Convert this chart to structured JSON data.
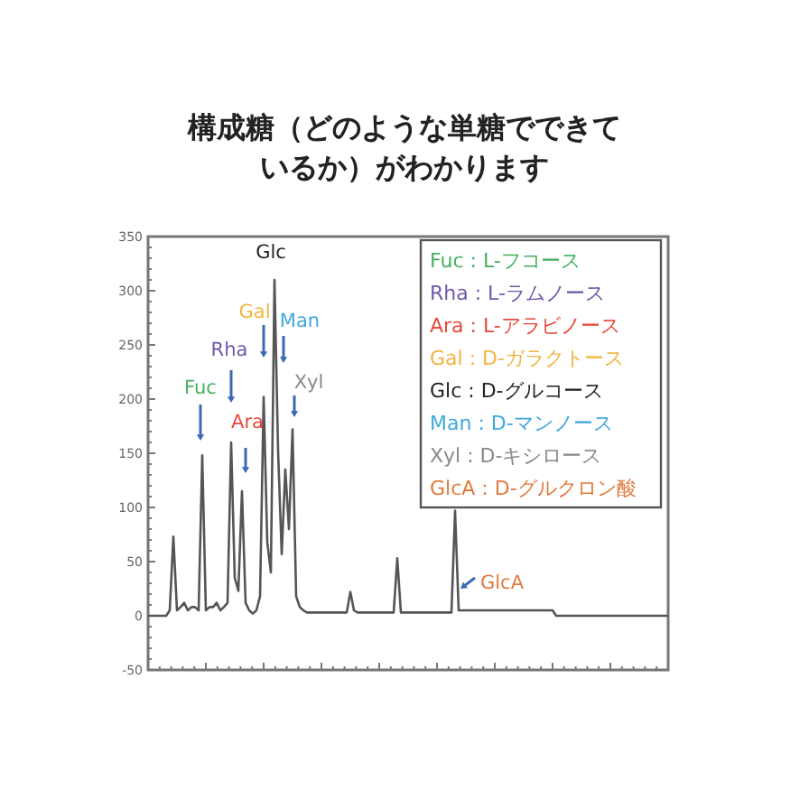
{
  "chart_data": {
    "type": "line",
    "title": "構成糖（どのような単糖でできているか）がわかります",
    "ylim": [
      -50,
      350
    ],
    "yticks": [
      -50,
      0,
      50,
      100,
      150,
      200,
      250,
      300,
      350
    ],
    "tick_labels": "y",
    "categories": [
      null,
      null,
      null,
      null,
      null,
      null,
      null,
      null,
      null,
      null,
      null,
      null,
      null,
      null,
      null,
      null,
      null,
      null,
      null,
      null,
      null,
      null,
      null,
      null,
      null,
      null,
      null,
      null,
      null,
      null,
      null,
      null,
      null,
      null,
      null,
      null,
      null,
      null,
      null,
      null,
      null,
      null,
      null,
      null,
      null,
      null,
      null,
      null,
      null,
      null,
      null,
      null,
      null,
      null,
      null,
      null,
      null,
      null,
      null,
      null,
      null,
      null,
      null,
      null,
      null,
      null,
      null,
      null,
      null,
      null,
      null,
      null,
      null,
      null,
      null,
      null,
      null,
      null,
      null,
      null,
      null,
      null,
      null,
      null,
      null,
      null,
      null,
      null,
      null,
      null,
      null,
      null,
      null,
      null,
      null,
      null,
      null,
      null,
      null,
      null,
      null,
      null,
      null,
      null,
      null,
      null,
      null,
      null,
      null,
      null,
      null,
      null,
      null,
      null,
      null,
      null,
      null,
      null,
      null,
      null,
      null,
      null,
      null,
      null,
      null,
      null,
      null,
      null,
      null,
      null,
      null,
      null,
      null,
      null,
      null,
      null,
      null,
      null,
      null,
      null,
      null,
      null,
      null,
      null,
      null
    ],
    "series": [
      {
        "color": "#555555",
        "values": [
          0,
          0,
          0,
          0,
          0,
          0,
          5,
          73,
          5,
          8,
          12,
          5,
          8,
          8,
          5,
          148,
          5,
          8,
          8,
          12,
          5,
          8,
          12,
          160,
          35,
          23,
          115,
          12,
          5,
          2,
          5,
          18,
          202,
          68,
          40,
          310,
          152,
          57,
          135,
          80,
          172,
          18,
          8,
          5,
          3,
          3,
          3,
          3,
          3,
          3,
          3,
          3,
          3,
          3,
          3,
          3,
          22,
          5,
          3,
          3,
          3,
          3,
          3,
          3,
          3,
          3,
          3,
          3,
          3,
          53,
          3,
          3,
          3,
          3,
          3,
          3,
          3,
          3,
          3,
          3,
          3,
          3,
          3,
          3,
          3,
          97,
          5,
          5,
          5,
          5,
          5,
          5,
          5,
          5,
          5,
          5,
          5,
          5,
          5,
          5,
          5,
          5,
          5,
          5,
          5,
          5,
          5,
          5,
          5,
          5,
          5,
          5,
          5,
          0,
          0,
          0,
          0,
          0,
          0,
          0,
          0,
          0,
          0,
          0,
          0,
          0,
          0,
          0,
          0,
          0,
          0,
          0,
          0,
          0,
          0,
          0,
          0,
          0,
          0,
          0,
          0,
          0,
          0,
          0,
          0
        ]
      }
    ],
    "annotations": [
      "Fuc : L-フコース",
      "Rha : L-ラムノース",
      "Ara : L-アラビノース",
      "Gal : D-ガラクトース",
      "Glc : D-グルコース",
      "Man : D-マンノース",
      "Xyl : D-キシロース",
      "GlcA : D-グルクロン酸",
      "Fuc",
      "Rha",
      "Ara",
      "Gal",
      "Glc",
      "Man",
      "Xyl",
      "GlcA"
    ]
  }
}
